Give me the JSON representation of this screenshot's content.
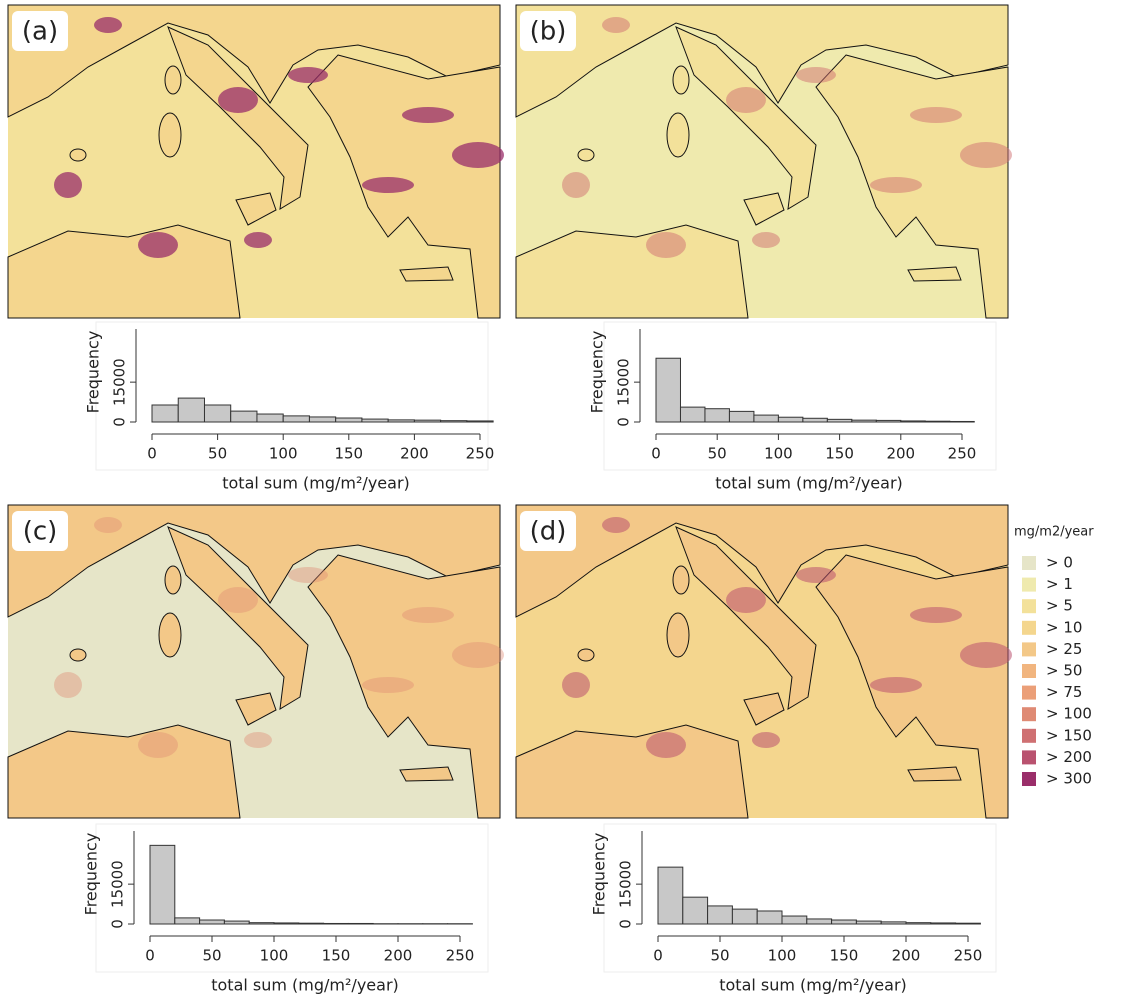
{
  "legend": {
    "title": "mg/m2/year",
    "items": [
      {
        "label": "> 0",
        "color": "#e6e5c8"
      },
      {
        "label": "> 1",
        "color": "#efeaae"
      },
      {
        "label": "> 5",
        "color": "#f3e19a"
      },
      {
        "label": "> 10",
        "color": "#f4d68e"
      },
      {
        "label": "> 25",
        "color": "#f3c888"
      },
      {
        "label": "> 50",
        "color": "#f1b57f"
      },
      {
        "label": "> 75",
        "color": "#eb9f78"
      },
      {
        "label": "> 100",
        "color": "#df8a74"
      },
      {
        "label": "> 150",
        "color": "#cf7072"
      },
      {
        "label": "> 200",
        "color": "#b9526f"
      },
      {
        "label": "> 300",
        "color": "#9a2e6a"
      }
    ]
  },
  "chart_data": [
    {
      "type": "histogram",
      "title": "(a)",
      "xlabel": "total sum (mg/m²/year)",
      "ylabel": "Frequency",
      "color": "#c8c8c8",
      "bins": [
        0,
        20,
        40,
        60,
        80,
        100,
        120,
        140,
        160,
        180,
        200,
        220,
        240,
        260
      ],
      "values": [
        6400,
        9000,
        6400,
        4100,
        3000,
        2300,
        1900,
        1500,
        1100,
        800,
        700,
        500,
        400
      ],
      "xlim": [
        0,
        260
      ],
      "xticks": [
        0,
        50,
        100,
        150,
        200,
        250
      ],
      "ylim": [
        0,
        35000
      ],
      "yticks": [
        0,
        15000
      ]
    },
    {
      "type": "histogram",
      "title": "(b)",
      "xlabel": "total sum (mg/m²/year)",
      "ylabel": "Frequency",
      "color": "#c8c8c8",
      "bins": [
        0,
        20,
        40,
        60,
        80,
        100,
        120,
        140,
        160,
        180,
        200,
        220,
        240,
        260
      ],
      "values": [
        24000,
        5600,
        5000,
        4000,
        2600,
        1800,
        1400,
        1000,
        700,
        600,
        400,
        300,
        200
      ],
      "xlim": [
        0,
        260
      ],
      "xticks": [
        0,
        50,
        100,
        150,
        200,
        250
      ],
      "ylim": [
        0,
        35000
      ],
      "yticks": [
        0,
        15000
      ]
    },
    {
      "type": "histogram",
      "title": "(c)",
      "xlabel": "total sum (mg/m²/year)",
      "ylabel": "Frequency",
      "color": "#c8c8c8",
      "bins": [
        0,
        20,
        40,
        60,
        80,
        100,
        120,
        140,
        160,
        180,
        200,
        220,
        240,
        260
      ],
      "values": [
        29600,
        2300,
        1500,
        1100,
        500,
        400,
        300,
        200,
        200,
        100,
        100,
        100,
        100
      ],
      "xlim": [
        0,
        260
      ],
      "xticks": [
        0,
        50,
        100,
        150,
        200,
        250
      ],
      "ylim": [
        0,
        35000
      ],
      "yticks": [
        0,
        15000
      ]
    },
    {
      "type": "histogram",
      "title": "(d)",
      "xlabel": "total sum (mg/m²/year)",
      "ylabel": "Frequency",
      "color": "#c8c8c8",
      "bins": [
        0,
        20,
        40,
        60,
        80,
        100,
        120,
        140,
        160,
        180,
        200,
        220,
        240,
        260
      ],
      "values": [
        21400,
        10100,
        6800,
        5600,
        4900,
        3000,
        1900,
        1500,
        1100,
        800,
        500,
        400,
        300
      ],
      "xlim": [
        0,
        260
      ],
      "xticks": [
        0,
        50,
        100,
        150,
        200,
        250
      ],
      "ylim": [
        0,
        35000
      ],
      "yticks": [
        0,
        15000
      ]
    }
  ]
}
